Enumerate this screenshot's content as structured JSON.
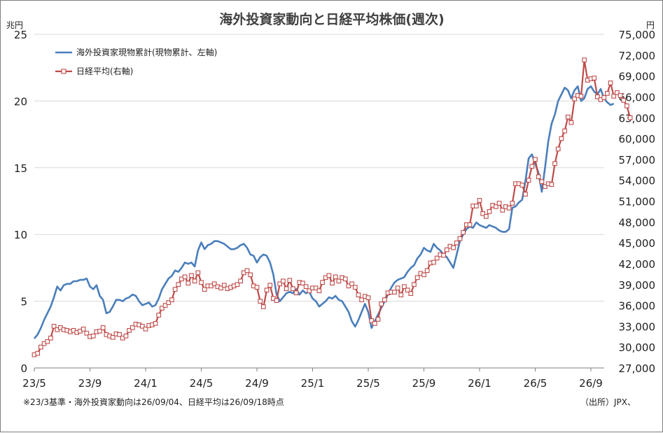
{
  "chart_data": {
    "type": "line",
    "title": "海外投資家動向と日経平均株価(週次)",
    "left_unit": "兆円",
    "right_unit": "円",
    "ylim_left": [
      0,
      25
    ],
    "ylim_right": [
      27000,
      75000
    ],
    "left_ticks": [
      "0",
      "5",
      "10",
      "15",
      "20",
      "25"
    ],
    "right_ticks": [
      "27,000",
      "30,000",
      "33,000",
      "36,000",
      "39,000",
      "42,000",
      "45,000",
      "48,000",
      "51,000",
      "54,000",
      "57,000",
      "60,000",
      "63,000",
      "66,000",
      "69,000",
      "72,000",
      "75,000"
    ],
    "x_ticks": [
      "23/5",
      "23/9",
      "24/1",
      "24/5",
      "24/9",
      "25/1",
      "25/5",
      "25/9",
      "26/1",
      "26/5",
      "26/9"
    ],
    "x_tick_weeks": [
      0,
      17,
      34,
      51,
      68,
      85,
      102,
      119,
      136,
      153,
      170
    ],
    "note": "※23/3基準・海外投資家動向は26/09/04、日経平均は26/09/18時点",
    "source": "（出所）JPX、",
    "colors": {
      "series1": "#4a7ebb",
      "series2": "#be4b48"
    },
    "series": [
      {
        "name": "海外投資家現物累計(現物累計、左軸)",
        "axis": "left",
        "start_week": 0,
        "values": [
          2.2,
          2.5,
          3.0,
          3.6,
          4.1,
          4.6,
          5.3,
          6.1,
          5.8,
          6.2,
          6.3,
          6.3,
          6.5,
          6.5,
          6.6,
          6.6,
          6.7,
          6.1,
          5.9,
          6.2,
          5.4,
          5.1,
          4.1,
          4.2,
          4.6,
          5.1,
          5.1,
          5.0,
          5.2,
          5.3,
          5.5,
          5.4,
          5.0,
          4.7,
          4.8,
          4.9,
          4.6,
          4.7,
          5.2,
          5.9,
          6.3,
          6.7,
          6.9,
          7.3,
          7.2,
          7.5,
          7.9,
          7.8,
          7.9,
          7.6,
          8.8,
          9.4,
          8.9,
          9.2,
          9.3,
          9.5,
          9.5,
          9.4,
          9.3,
          9.1,
          8.9,
          8.9,
          9.0,
          9.2,
          9.3,
          9.0,
          8.5,
          8.4,
          7.9,
          8.3,
          8.5,
          8.4,
          7.9,
          7.0,
          5.5,
          5.0,
          5.3,
          5.6,
          5.7,
          5.6,
          5.9,
          5.5,
          5.8,
          5.6,
          5.7,
          5.2,
          5.0,
          4.6,
          4.8,
          5.0,
          5.3,
          5.2,
          5.4,
          5.1,
          5.0,
          4.6,
          4.2,
          3.5,
          3.1,
          3.6,
          4.2,
          4.8,
          4.2,
          3.0,
          3.5,
          4.0,
          4.5,
          5.0,
          5.5,
          6.0,
          6.4,
          6.6,
          6.7,
          6.8,
          7.2,
          7.5,
          7.7,
          8.2,
          8.5,
          9.0,
          8.8,
          8.7,
          9.3,
          9.0,
          8.8,
          8.5,
          8.3,
          7.9,
          7.5,
          8.5,
          9.5,
          10.0,
          10.4,
          10.6,
          10.5,
          10.9,
          10.7,
          10.6,
          10.5,
          10.7,
          10.6,
          10.5,
          10.3,
          10.2,
          10.2,
          10.4,
          12.0,
          12.1,
          12.4,
          12.6,
          14.0,
          15.7,
          16.0,
          15.3,
          14.6,
          13.2,
          15.0,
          17.0,
          18.3,
          19.0,
          20.0,
          20.5,
          21.0,
          20.8,
          20.2,
          20.8,
          21.1,
          20.0,
          20.2,
          20.9,
          21.1,
          20.7,
          20.5,
          20.9,
          20.2,
          19.9,
          19.7,
          19.8
        ]
      },
      {
        "name": "日経平均(右軸)",
        "axis": "right",
        "start_week": 0,
        "values": [
          28900,
          29100,
          30000,
          30500,
          30800,
          31300,
          33000,
          32500,
          32800,
          32500,
          32400,
          32200,
          32400,
          32100,
          32300,
          32600,
          32000,
          31500,
          31600,
          32200,
          32300,
          32800,
          31800,
          31600,
          31400,
          31900,
          31800,
          31300,
          31600,
          32400,
          32800,
          33300,
          33200,
          33000,
          32600,
          33100,
          33200,
          33400,
          34600,
          35600,
          36000,
          36400,
          36800,
          38300,
          39000,
          39800,
          40100,
          39200,
          40300,
          39500,
          40700,
          39300,
          38300,
          38800,
          38800,
          39100,
          38700,
          38500,
          38900,
          38400,
          38600,
          38800,
          39000,
          39500,
          40700,
          41000,
          40400,
          38800,
          38600,
          36600,
          35800,
          38200,
          38900,
          37000,
          36700,
          39100,
          39500,
          38400,
          39600,
          38400,
          37800,
          39300,
          39200,
          38700,
          38100,
          38500,
          38500,
          38100,
          39300,
          40000,
          40300,
          39200,
          40100,
          39500,
          40000,
          39800,
          38800,
          39100,
          38600,
          37500,
          36800,
          37300,
          37100,
          33800,
          33400,
          34000,
          36200,
          36800,
          37800,
          37900,
          37900,
          38500,
          37500,
          38700,
          38200,
          37700,
          39000,
          40000,
          40600,
          40400,
          41000,
          42100,
          42200,
          42800,
          43300,
          43200,
          44000,
          44500,
          44300,
          45000,
          45600,
          46500,
          47600,
          47600,
          50300,
          50300,
          51100,
          49200,
          48800,
          49500,
          50400,
          50200,
          50700,
          49700,
          50200,
          50000,
          50700,
          53500,
          53500,
          53300,
          52000,
          54000,
          56000,
          57000,
          54500,
          53800,
          53100,
          53500,
          53400,
          56400,
          58500,
          60000,
          61100,
          63100,
          62300,
          65700,
          66200,
          66100,
          71300,
          68400,
          68600,
          68700,
          66000,
          65600,
          65900,
          66500,
          68000,
          66100,
          66600,
          66200,
          65500,
          64700,
          63000
        ]
      }
    ]
  }
}
